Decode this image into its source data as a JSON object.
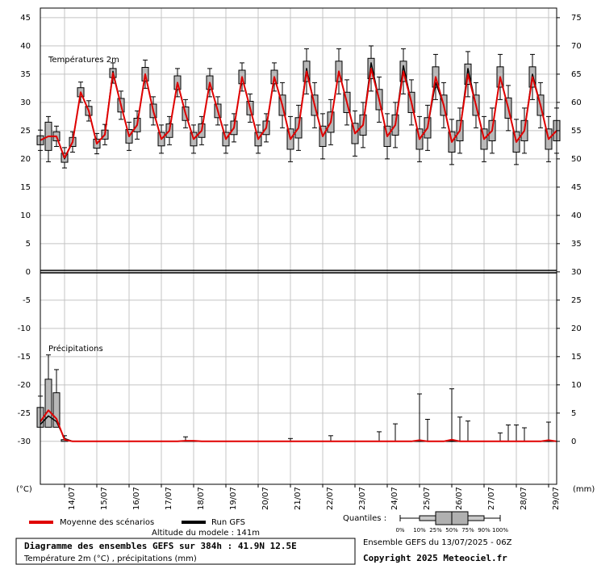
{
  "chart_data": {
    "type": "line",
    "panel_labels": [
      "Températures 2m",
      "Précipitations"
    ],
    "ylabel": "(°C)",
    "y2label": "(mm)",
    "x": [
      0,
      6,
      12,
      18,
      24,
      30,
      36,
      42,
      48,
      54,
      60,
      66,
      72,
      78,
      84,
      90,
      96,
      102,
      108,
      114,
      120,
      126,
      132,
      138,
      144,
      150,
      156,
      162,
      168,
      174,
      180,
      186,
      192,
      198,
      204,
      210,
      216,
      222,
      228,
      234,
      240,
      246,
      252,
      258,
      264,
      270,
      276,
      282,
      288,
      294,
      300,
      306,
      312,
      318,
      324,
      330,
      336,
      342,
      348,
      354,
      360,
      366,
      372,
      378,
      384
    ],
    "xlim": [
      0,
      384
    ],
    "xticks": [
      {
        "value": 18,
        "label": "14/07"
      },
      {
        "value": 42,
        "label": "15/07"
      },
      {
        "value": 66,
        "label": "16/07"
      },
      {
        "value": 90,
        "label": "17/07"
      },
      {
        "value": 114,
        "label": "18/07"
      },
      {
        "value": 138,
        "label": "19/07"
      },
      {
        "value": 162,
        "label": "20/07"
      },
      {
        "value": 186,
        "label": "21/07"
      },
      {
        "value": 210,
        "label": "22/07"
      },
      {
        "value": 234,
        "label": "23/07"
      },
      {
        "value": 258,
        "label": "24/07"
      },
      {
        "value": 282,
        "label": "25/07"
      },
      {
        "value": 306,
        "label": "26/07"
      },
      {
        "value": 330,
        "label": "27/07"
      },
      {
        "value": 354,
        "label": "28/07"
      },
      {
        "value": 378,
        "label": "29/07"
      }
    ],
    "ylim": [
      -37.6,
      46.7
    ],
    "yticks": [
      45,
      40,
      35,
      30,
      25,
      20,
      15,
      10,
      5,
      0,
      -5,
      -10,
      -15,
      -20,
      -25,
      -30
    ],
    "y2lim": [
      -7.6,
      76.7
    ],
    "y2ticks": [
      75,
      70,
      65,
      60,
      55,
      50,
      45,
      40,
      35,
      30,
      25,
      20,
      15,
      10,
      5,
      0
    ],
    "grid": true,
    "series": [
      {
        "name": "Moyenne des scénarios",
        "color": "#e00000",
        "values": [
          23.3,
          24,
          24,
          20.2,
          23,
          31.8,
          28.5,
          22.7,
          24.3,
          35.2,
          29.5,
          24,
          26,
          35,
          28.5,
          23.5,
          25,
          33.5,
          28,
          23.5,
          25,
          33.5,
          28.5,
          23.5,
          25.5,
          34.5,
          29,
          23.5,
          25.5,
          34.5,
          29.5,
          23.5,
          25.5,
          35.5,
          29.5,
          24,
          26.5,
          35.5,
          30,
          24.5,
          26,
          36,
          30.5,
          24,
          26,
          35.5,
          30,
          23.5,
          25.5,
          34.5,
          29.5,
          23,
          25,
          35,
          29.5,
          23.5,
          25,
          34.5,
          29,
          23,
          25,
          34.5,
          29.5,
          23.5,
          25
        ],
        "precipitation": [
          3.5,
          5.5,
          4,
          0.3,
          0,
          0,
          0,
          0,
          0,
          0,
          0,
          0,
          0,
          0,
          0,
          0,
          0,
          0,
          0.1,
          0.1,
          0,
          0,
          0,
          0,
          0,
          0,
          0,
          0,
          0,
          0,
          0,
          0,
          0,
          0,
          0,
          0,
          0,
          0,
          0,
          0,
          0,
          0,
          0,
          0,
          0,
          0,
          0,
          0.2,
          0,
          0,
          0,
          0.3,
          0,
          0,
          0,
          0,
          0,
          0,
          0,
          0,
          0,
          0,
          0,
          0.2,
          0
        ]
      },
      {
        "name": "Run GFS",
        "color": "#000000",
        "values": [
          23.3,
          24,
          24,
          20,
          23,
          31.8,
          28.5,
          22.7,
          24.3,
          35.5,
          29.5,
          24,
          26,
          35,
          28.5,
          23.5,
          25,
          33.5,
          28,
          23.5,
          25,
          33.5,
          28.5,
          23.5,
          25.5,
          34.5,
          29,
          23.5,
          25.5,
          34.5,
          29.5,
          23.5,
          25.5,
          36,
          29.5,
          24,
          26.5,
          35.5,
          30,
          24.5,
          26,
          37,
          30.5,
          24,
          26,
          36.5,
          30,
          23.5,
          25.5,
          33.5,
          29.5,
          23,
          25,
          36,
          29.5,
          23.5,
          25,
          34.5,
          29,
          23,
          25,
          35,
          29.5,
          23.5,
          25
        ],
        "precipitation": [
          3,
          4.5,
          3.5,
          0.5,
          0,
          0,
          0,
          0,
          0,
          0,
          0,
          0,
          0,
          0,
          0,
          0,
          0,
          0,
          0,
          0,
          0,
          0,
          0,
          0,
          0,
          0,
          0,
          0,
          0,
          0,
          0,
          0,
          0,
          0,
          0,
          0,
          0,
          0,
          0,
          0,
          0,
          0,
          0,
          0,
          0,
          0,
          0,
          0,
          0,
          0,
          0,
          0,
          0,
          0,
          0,
          0,
          0,
          0,
          0,
          0,
          0,
          0,
          0,
          0,
          0
        ]
      }
    ],
    "temperature_quantiles": {
      "min": [
        21.5,
        19.5,
        22.2,
        18.4,
        21.2,
        30,
        26.7,
        20.9,
        22.5,
        33.4,
        27,
        21.5,
        23.5,
        32.5,
        26,
        21,
        22.5,
        31,
        25.5,
        21,
        22.5,
        31,
        26,
        21,
        23,
        32,
        26.5,
        21,
        23,
        32,
        25.5,
        19.5,
        21.5,
        31.5,
        25.5,
        20,
        22.5,
        31.5,
        26,
        20.5,
        22,
        32,
        26.5,
        20,
        22,
        31.5,
        26,
        19.5,
        21.5,
        30.5,
        25.5,
        19,
        21,
        31,
        25.5,
        19.5,
        21,
        30.5,
        25,
        19,
        21,
        30.5,
        25.5,
        19.5,
        21
      ],
      "q25": [
        22.5,
        21.5,
        23.2,
        19.4,
        22.2,
        31,
        27.7,
        21.9,
        23.5,
        34.4,
        28.3,
        22.8,
        24.8,
        33.8,
        27.3,
        22.3,
        23.8,
        32.3,
        26.8,
        22.3,
        23.8,
        32.3,
        27.3,
        22.3,
        24.3,
        33.3,
        27.8,
        22.3,
        24.3,
        33.3,
        27.7,
        21.7,
        23.7,
        33.7,
        27.7,
        22.2,
        24.7,
        33.7,
        28.2,
        22.7,
        24.2,
        34.2,
        28.7,
        22.2,
        24.2,
        33.7,
        28.2,
        21.7,
        23.7,
        32.7,
        27.7,
        21.2,
        23.2,
        33.2,
        27.7,
        21.7,
        23.2,
        32.7,
        27.2,
        21.2,
        23.2,
        32.7,
        27.7,
        21.7,
        23.2
      ],
      "q75": [
        24.1,
        26.5,
        24.8,
        21,
        23.8,
        32.6,
        29.3,
        23.5,
        25.1,
        36,
        30.7,
        25.2,
        27.2,
        36.2,
        29.7,
        24.7,
        26.2,
        34.7,
        29.2,
        24.7,
        26.2,
        34.7,
        29.7,
        24.7,
        26.7,
        35.7,
        30.2,
        24.7,
        26.7,
        35.7,
        31.3,
        25.3,
        27.3,
        37.3,
        31.3,
        25.8,
        28.3,
        37.3,
        31.8,
        26.3,
        27.8,
        37.8,
        32.3,
        25.8,
        27.8,
        37.3,
        31.8,
        25.3,
        27.3,
        36.3,
        31.3,
        24.8,
        26.8,
        36.8,
        31.3,
        25.3,
        26.8,
        36.3,
        30.8,
        24.8,
        26.8,
        36.3,
        31.3,
        25.3,
        26.8
      ],
      "max": [
        25.1,
        27.5,
        25.8,
        22,
        24.8,
        33.6,
        30.3,
        24.5,
        26.1,
        37,
        32,
        26.5,
        28.5,
        37.5,
        31,
        26,
        27.5,
        36,
        30.5,
        26,
        27.5,
        36,
        31,
        26,
        28,
        37,
        31.5,
        26,
        28,
        37,
        33.5,
        27.5,
        29.5,
        39.5,
        33.5,
        28,
        30.5,
        39.5,
        34,
        28.5,
        30,
        40,
        34.5,
        28,
        30,
        39.5,
        34,
        27.5,
        29.5,
        38.5,
        33.5,
        27,
        29,
        39,
        33.5,
        27.5,
        29,
        38.5,
        33,
        27,
        29,
        38.5,
        33.5,
        27.5,
        29
      ]
    },
    "precipitation_quantiles": {
      "q25": [
        2.5,
        2.5,
        2.5,
        0,
        0,
        0,
        0,
        0,
        0,
        0,
        0,
        0,
        0,
        0,
        0,
        0,
        0,
        0,
        0,
        0,
        0,
        0,
        0,
        0,
        0,
        0,
        0,
        0,
        0,
        0,
        0,
        0,
        0,
        0,
        0,
        0,
        0,
        0,
        0,
        0,
        0,
        0,
        0,
        0,
        0,
        0,
        0,
        0,
        0,
        0,
        0,
        0,
        0,
        0,
        0,
        0,
        0,
        0,
        0,
        0,
        0,
        0,
        0,
        0,
        0
      ],
      "q75": [
        6,
        11,
        8.6,
        0.3,
        0,
        0,
        0,
        0,
        0,
        0,
        0,
        0,
        0,
        0,
        0,
        0,
        0,
        0,
        0,
        0,
        0,
        0,
        0,
        0,
        0,
        0,
        0,
        0,
        0,
        0,
        0,
        0,
        0,
        0,
        0,
        0,
        0,
        0,
        0,
        0,
        0,
        0,
        0,
        0,
        0,
        0,
        0,
        0,
        0,
        0,
        0,
        0,
        0,
        0,
        0,
        0,
        0,
        0,
        0,
        0,
        0,
        0,
        0,
        0,
        0
      ],
      "max": [
        8,
        15.3,
        12.7,
        1,
        0,
        0,
        0,
        0,
        0,
        0,
        0,
        0,
        0,
        0,
        0,
        0,
        0,
        0,
        0.8,
        0,
        0,
        0,
        0,
        0,
        0,
        0,
        0,
        0,
        0,
        0,
        0,
        0.5,
        0,
        0,
        0,
        0,
        1,
        0,
        0,
        0,
        0,
        0,
        1.7,
        0,
        3.1,
        0,
        0,
        8.4,
        3.9,
        0,
        0,
        9.3,
        4.3,
        3.6,
        0,
        0,
        0,
        1.5,
        2.9,
        2.9,
        2.4,
        0,
        0,
        3.4,
        0
      ]
    },
    "altitude": "Altitude du modele : 141m",
    "quantiles_legend": {
      "title": "Quantiles :",
      "labels": [
        "0%",
        "10%",
        "25%",
        "50%",
        "75%",
        "90%",
        "100%"
      ]
    },
    "footer": {
      "title": "Diagramme des ensembles GEFS sur 384h : 41.9N 12.5E",
      "subtitle": "Température 2m (°C) , précipitations (mm)",
      "run": "Ensemble GEFS du 13/07/2025 - 06Z",
      "copyright": "Copyright 2025 Meteociel.fr"
    }
  }
}
